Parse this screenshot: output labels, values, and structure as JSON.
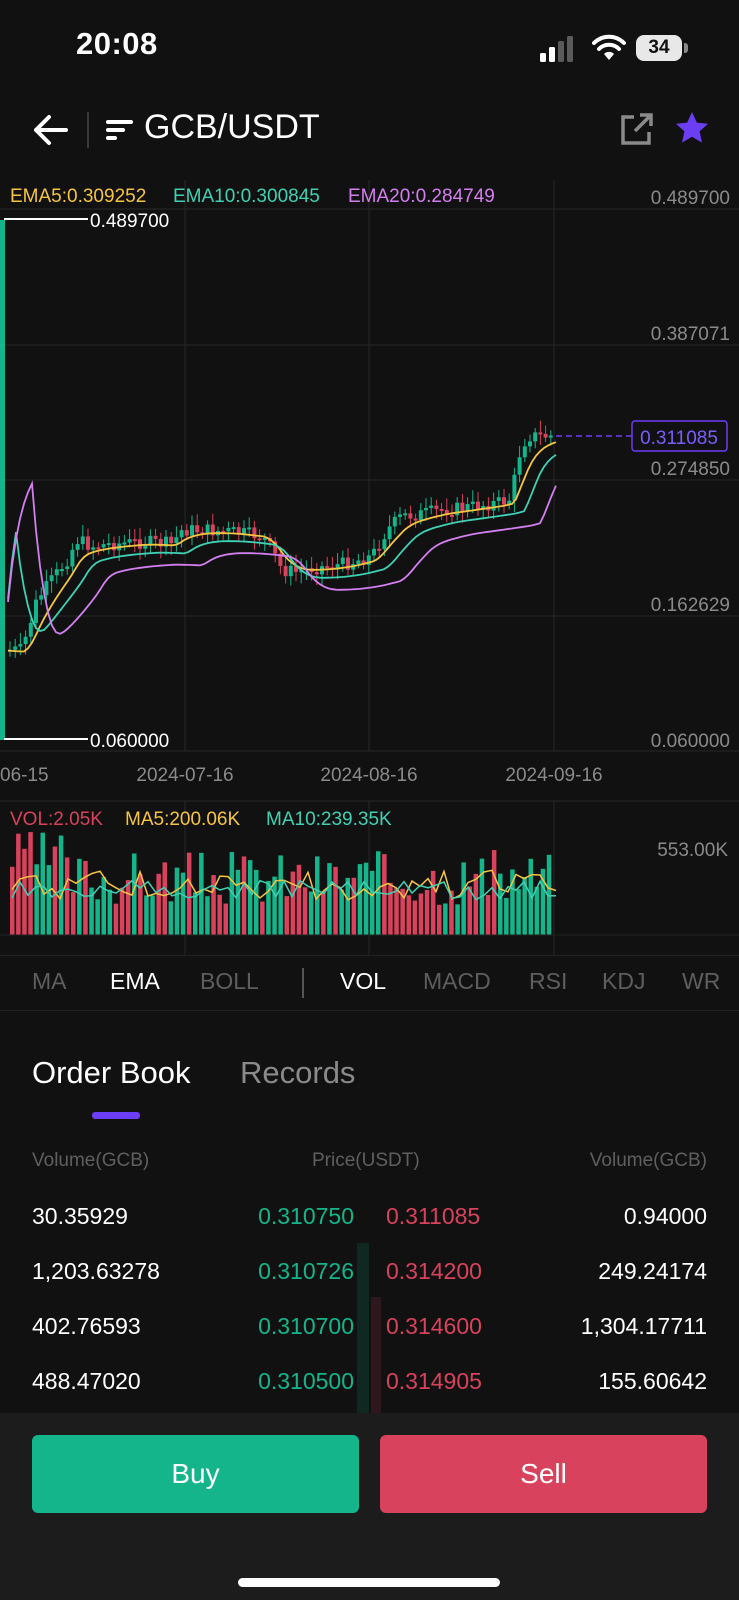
{
  "status_bar": {
    "time": "20:08",
    "battery": "34"
  },
  "header": {
    "pair": "GCB/USDT"
  },
  "chart": {
    "ema_labels": {
      "ema5": "EMA5:0.309252",
      "ema10": "EMA10:0.300845",
      "ema20": "EMA20:0.284749"
    },
    "y_ticks": [
      "0.489700",
      "0.387071",
      "0.274850",
      "0.162629",
      "0.060000"
    ],
    "current_price": "0.311085",
    "high_marker": "0.489700",
    "low_marker": "0.060000",
    "x_ticks": [
      "06-15",
      "2024-07-16",
      "2024-08-16",
      "2024-09-16"
    ],
    "vol_labels": {
      "vol": "VOL:2.05K",
      "ma5": "MA5:200.06K",
      "ma10": "MA10:239.35K"
    },
    "vol_max": "553.00K",
    "colors": {
      "up": "#14b58b",
      "down": "#d8425c",
      "ema5": "#f5c542",
      "ema10": "#3fd1b4",
      "ema20": "#d47ff0",
      "accent": "#6b3ef5"
    }
  },
  "chart_data": {
    "type": "line",
    "x_ticks": [
      "06-15",
      "2024-07-16",
      "2024-08-16",
      "2024-09-16"
    ],
    "ylim": [
      0.06,
      0.4897
    ],
    "current_price": 0.311085,
    "series": [
      {
        "name": "EMA5",
        "last": 0.309252
      },
      {
        "name": "EMA10",
        "last": 0.300845
      },
      {
        "name": "EMA20",
        "last": 0.284749
      }
    ]
  },
  "indicator_tabs": {
    "main": [
      "MA",
      "EMA",
      "BOLL"
    ],
    "sub": [
      "VOL",
      "MACD",
      "RSI",
      "KDJ",
      "WR"
    ],
    "active_main": "EMA",
    "active_sub": "VOL"
  },
  "order_book": {
    "tabs": [
      "Order Book",
      "Records"
    ],
    "headers": {
      "left": "Volume(GCB)",
      "center": "Price(USDT)",
      "right": "Volume(GCB)"
    },
    "rows": [
      {
        "bid_vol": "30.35929",
        "bid": "0.310750",
        "ask": "0.311085",
        "ask_vol": "0.94000"
      },
      {
        "bid_vol": "1,203.63278",
        "bid": "0.310726",
        "ask": "0.314200",
        "ask_vol": "249.24174"
      },
      {
        "bid_vol": "402.76593",
        "bid": "0.310700",
        "ask": "0.314600",
        "ask_vol": "1,304.17711"
      },
      {
        "bid_vol": "488.47020",
        "bid": "0.310500",
        "ask": "0.314905",
        "ask_vol": "155.60642"
      }
    ]
  },
  "actions": {
    "buy": "Buy",
    "sell": "Sell"
  }
}
